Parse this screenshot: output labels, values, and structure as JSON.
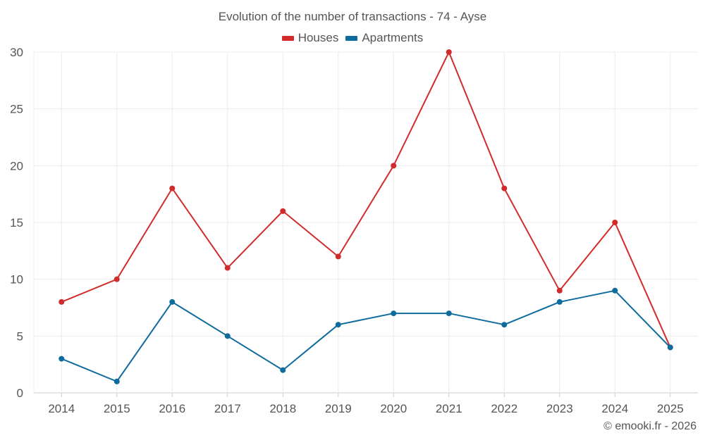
{
  "chart_data": {
    "type": "line",
    "title": "Evolution of the number of transactions - 74 - Ayse",
    "categories": [
      "2014",
      "2015",
      "2016",
      "2017",
      "2018",
      "2019",
      "2020",
      "2021",
      "2022",
      "2023",
      "2024",
      "2025"
    ],
    "series": [
      {
        "name": "Houses",
        "color": "#d22b2b",
        "values": [
          8,
          10,
          18,
          11,
          16,
          12,
          20,
          30,
          18,
          9,
          15,
          4
        ]
      },
      {
        "name": "Apartments",
        "color": "#0e6b9d",
        "values": [
          3,
          1,
          8,
          5,
          2,
          6,
          7,
          7,
          6,
          8,
          9,
          4
        ]
      }
    ],
    "ylim": [
      0,
      30
    ],
    "yticks": [
      0,
      5,
      10,
      15,
      20,
      25,
      30
    ],
    "grid": true,
    "legend_position": "top-center"
  },
  "credit": "© emooki.fr - 2026"
}
